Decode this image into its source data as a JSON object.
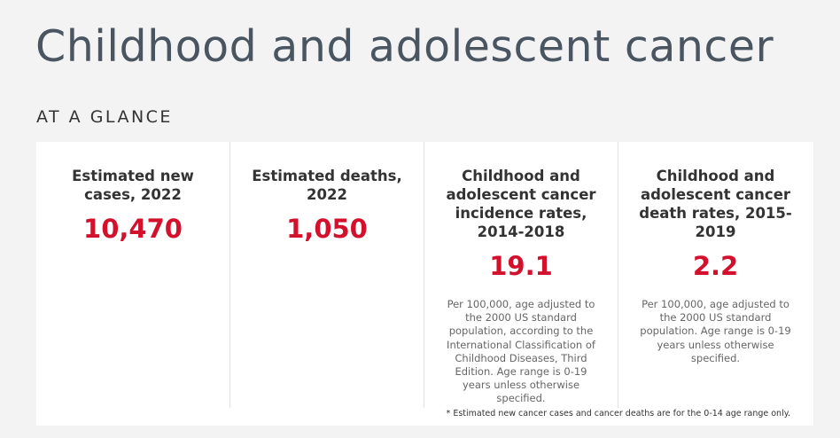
{
  "header": {
    "title": "Childhood and adolescent cancer",
    "subtitle": "AT A GLANCE"
  },
  "cards": [
    {
      "heading": "Estimated new cases, 2022",
      "value": "10,470"
    },
    {
      "heading": "Estimated deaths, 2022",
      "value": "1,050"
    },
    {
      "heading": "Childhood and adolescent cancer incidence rates, 2014-2018",
      "value": "19.1",
      "note": "Per 100,000, age adjusted to the 2000 US standard population, according to the International Classification of Childhood Diseases, Third Edition. Age range is 0-19 years unless otherwise specified."
    },
    {
      "heading": "Childhood and adolescent cancer death rates, 2015-2019",
      "value": "2.2",
      "note": "Per 100,000, age adjusted to the 2000 US standard population. Age range is 0-19 years unless otherwise specified."
    }
  ],
  "footnote": "* Estimated new cancer cases and cancer deaths are for the 0-14 age range only."
}
